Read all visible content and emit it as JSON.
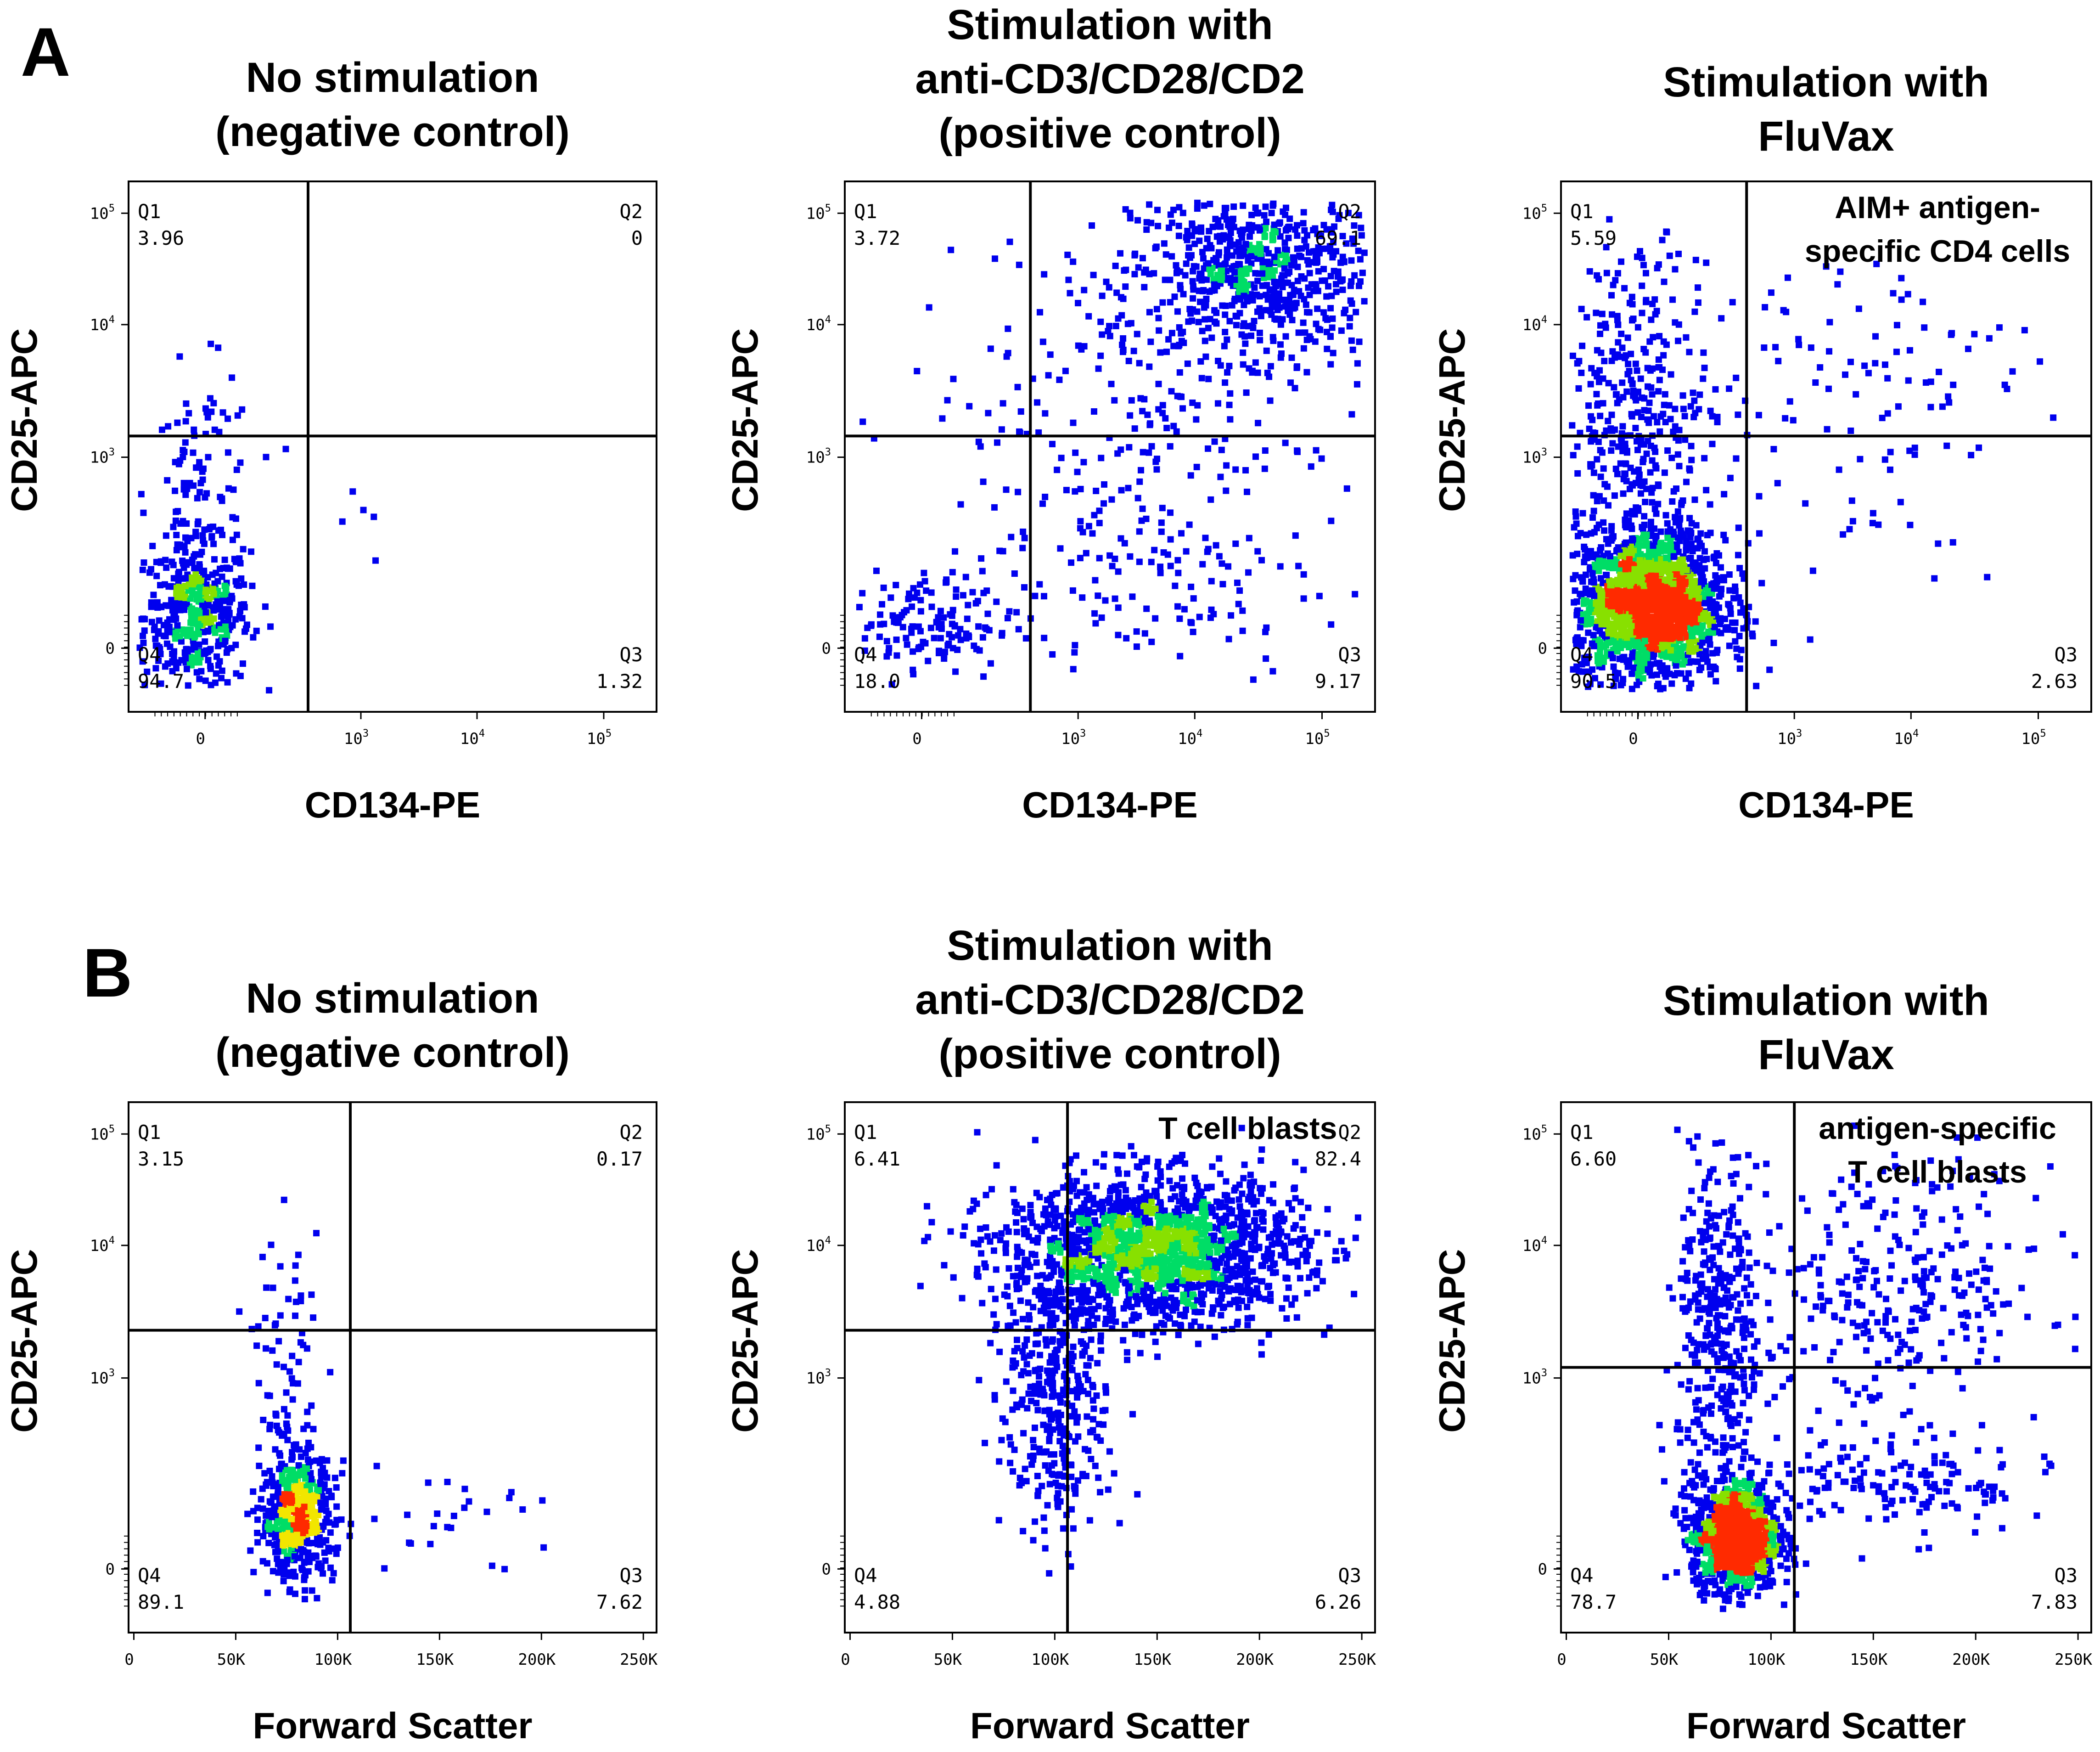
{
  "panel_letters": [
    "A",
    "B"
  ],
  "colors": {
    "low": "#0000ee",
    "mid": "#00dd66",
    "high": "#ff2a00",
    "yellow": "#f2e600",
    "lime": "#88e000",
    "faint": "#c8c8f0",
    "frame": "#000000"
  },
  "chart_data": [
    {
      "type": "scatter",
      "panel": "A",
      "title": [
        "No stimulation",
        "(negative control)"
      ],
      "xlabel": "CD134-PE",
      "ylabel": "CD25-APC",
      "x_scale": "biexponential",
      "y_scale": "biexponential",
      "x_ticks": [
        {
          "b": "0",
          "e": ""
        },
        {
          "b": "10",
          "e": "3"
        },
        {
          "b": "10",
          "e": "4"
        },
        {
          "b": "10",
          "e": "5"
        }
      ],
      "y_ticks": [
        {
          "b": "0",
          "e": ""
        },
        {
          "b": "10",
          "e": "3"
        },
        {
          "b": "10",
          "e": "4"
        },
        {
          "b": "10",
          "e": "5"
        }
      ],
      "gate": {
        "x": 0.34,
        "y": 0.52
      },
      "quadrants": {
        "Q1": "3.96",
        "Q2": "0",
        "Q3": "1.32",
        "Q4": "94.7"
      },
      "annotation": [],
      "populations": [
        {
          "cx": 0.13,
          "cy": 0.18,
          "sx": 0.05,
          "sy": 0.07,
          "n": 420
        },
        {
          "cx": 0.14,
          "cy": 0.4,
          "sx": 0.05,
          "sy": 0.12,
          "n": 120
        },
        {
          "cx": 0.4,
          "cy": 0.33,
          "sx": 0.05,
          "sy": 0.08,
          "n": 5
        }
      ]
    },
    {
      "type": "scatter",
      "panel": "A",
      "title": [
        "Stimulation with",
        "anti-CD3/CD28/CD2",
        "(positive control)"
      ],
      "xlabel": "CD134-PE",
      "ylabel": "CD25-APC",
      "x_scale": "biexponential",
      "y_scale": "biexponential",
      "x_ticks": [
        {
          "b": "0",
          "e": ""
        },
        {
          "b": "10",
          "e": "3"
        },
        {
          "b": "10",
          "e": "4"
        },
        {
          "b": "10",
          "e": "5"
        }
      ],
      "y_ticks": [
        {
          "b": "0",
          "e": ""
        },
        {
          "b": "10",
          "e": "3"
        },
        {
          "b": "10",
          "e": "4"
        },
        {
          "b": "10",
          "e": "5"
        }
      ],
      "gate": {
        "x": 0.35,
        "y": 0.52
      },
      "quadrants": {
        "Q1": "3.72",
        "Q2": "69.1",
        "Q3": "9.17",
        "Q4": "18.0"
      },
      "annotation": [],
      "populations": [
        {
          "cx": 0.78,
          "cy": 0.83,
          "sx": 0.12,
          "sy": 0.08,
          "n": 700
        },
        {
          "cx": 0.55,
          "cy": 0.55,
          "sx": 0.22,
          "sy": 0.18,
          "n": 260
        },
        {
          "cx": 0.14,
          "cy": 0.16,
          "sx": 0.09,
          "sy": 0.05,
          "n": 160
        },
        {
          "cx": 0.6,
          "cy": 0.25,
          "sx": 0.15,
          "sy": 0.1,
          "n": 90
        }
      ]
    },
    {
      "type": "scatter",
      "panel": "A",
      "title": [
        "Stimulation with",
        "FluVax"
      ],
      "xlabel": "CD134-PE",
      "ylabel": "CD25-APC",
      "x_scale": "biexponential",
      "y_scale": "biexponential",
      "x_ticks": [
        {
          "b": "0",
          "e": ""
        },
        {
          "b": "10",
          "e": "3"
        },
        {
          "b": "10",
          "e": "4"
        },
        {
          "b": "10",
          "e": "5"
        }
      ],
      "y_ticks": [
        {
          "b": "0",
          "e": ""
        },
        {
          "b": "10",
          "e": "3"
        },
        {
          "b": "10",
          "e": "4"
        },
        {
          "b": "10",
          "e": "5"
        }
      ],
      "gate": {
        "x": 0.35,
        "y": 0.52
      },
      "quadrants": {
        "Q1": "5.59",
        "Q2": "",
        "Q3": "2.63",
        "Q4": "90.5"
      },
      "annotation": [
        "AIM+ antigen-",
        "specific CD4 cells"
      ],
      "populations": [
        {
          "cx": 0.17,
          "cy": 0.2,
          "sx": 0.07,
          "sy": 0.07,
          "n": 1800
        },
        {
          "cx": 0.15,
          "cy": 0.55,
          "sx": 0.07,
          "sy": 0.16,
          "n": 380
        },
        {
          "cx": 0.55,
          "cy": 0.6,
          "sx": 0.16,
          "sy": 0.16,
          "n": 110
        }
      ]
    },
    {
      "type": "scatter",
      "panel": "B",
      "title": [
        "No stimulation",
        "(negative control)"
      ],
      "xlabel": "Forward Scatter",
      "ylabel": "CD25-APC",
      "x_scale": "linear",
      "y_scale": "biexponential",
      "x_ticks": [
        {
          "b": "0",
          "e": ""
        },
        {
          "b": "50K",
          "e": ""
        },
        {
          "b": "100K",
          "e": ""
        },
        {
          "b": "150K",
          "e": ""
        },
        {
          "b": "200K",
          "e": ""
        },
        {
          "b": "250K",
          "e": ""
        }
      ],
      "y_ticks": [
        {
          "b": "0",
          "e": ""
        },
        {
          "b": "10",
          "e": "3"
        },
        {
          "b": "10",
          "e": "4"
        },
        {
          "b": "10",
          "e": "5"
        }
      ],
      "gate": {
        "x": 0.42,
        "y": 0.57
      },
      "quadrants": {
        "Q1": "3.15",
        "Q2": "0.17",
        "Q3": "7.62",
        "Q4": "89.1"
      },
      "annotation": [],
      "populations": [
        {
          "cx": 0.32,
          "cy": 0.22,
          "sx": 0.035,
          "sy": 0.06,
          "n": 520
        },
        {
          "cx": 0.3,
          "cy": 0.5,
          "sx": 0.03,
          "sy": 0.12,
          "n": 70
        },
        {
          "cx": 0.6,
          "cy": 0.22,
          "sx": 0.12,
          "sy": 0.05,
          "n": 28
        }
      ]
    },
    {
      "type": "scatter",
      "panel": "B",
      "title": [
        "Stimulation with",
        "anti-CD3/CD28/CD2",
        "(positive control)"
      ],
      "xlabel": "Forward Scatter",
      "ylabel": "CD25-APC",
      "x_scale": "linear",
      "y_scale": "biexponential",
      "x_ticks": [
        {
          "b": "0",
          "e": ""
        },
        {
          "b": "50K",
          "e": ""
        },
        {
          "b": "100K",
          "e": ""
        },
        {
          "b": "150K",
          "e": ""
        },
        {
          "b": "200K",
          "e": ""
        },
        {
          "b": "250K",
          "e": ""
        }
      ],
      "y_ticks": [
        {
          "b": "0",
          "e": ""
        },
        {
          "b": "10",
          "e": "3"
        },
        {
          "b": "10",
          "e": "4"
        },
        {
          "b": "10",
          "e": "5"
        }
      ],
      "gate": {
        "x": 0.42,
        "y": 0.57
      },
      "quadrants": {
        "Q1": "6.41",
        "Q2": "82.4",
        "Q3": "6.26",
        "Q4": "4.88"
      },
      "annotation": [
        "T cell blasts"
      ],
      "populations": [
        {
          "cx": 0.58,
          "cy": 0.72,
          "sx": 0.14,
          "sy": 0.07,
          "n": 1700
        },
        {
          "cx": 0.4,
          "cy": 0.45,
          "sx": 0.05,
          "sy": 0.14,
          "n": 380
        }
      ]
    },
    {
      "type": "scatter",
      "panel": "B",
      "title": [
        "Stimulation with",
        "FluVax"
      ],
      "xlabel": "Forward Scatter",
      "ylabel": "CD25-APC",
      "x_scale": "linear",
      "y_scale": "biexponential",
      "x_ticks": [
        {
          "b": "0",
          "e": ""
        },
        {
          "b": "50K",
          "e": ""
        },
        {
          "b": "100K",
          "e": ""
        },
        {
          "b": "150K",
          "e": ""
        },
        {
          "b": "200K",
          "e": ""
        },
        {
          "b": "250K",
          "e": ""
        }
      ],
      "y_ticks": [
        {
          "b": "0",
          "e": ""
        },
        {
          "b": "10",
          "e": "3"
        },
        {
          "b": "10",
          "e": "4"
        },
        {
          "b": "10",
          "e": "5"
        }
      ],
      "gate": {
        "x": 0.44,
        "y": 0.5
      },
      "quadrants": {
        "Q1": "6.60",
        "Q2": "",
        "Q3": "7.83",
        "Q4": "78.7"
      },
      "annotation": [
        "antigen-specific",
        "T cell blasts"
      ],
      "populations": [
        {
          "cx": 0.33,
          "cy": 0.18,
          "sx": 0.04,
          "sy": 0.05,
          "n": 1100
        },
        {
          "cx": 0.3,
          "cy": 0.55,
          "sx": 0.04,
          "sy": 0.18,
          "n": 380
        },
        {
          "cx": 0.63,
          "cy": 0.65,
          "sx": 0.15,
          "sy": 0.12,
          "n": 300
        },
        {
          "cx": 0.63,
          "cy": 0.28,
          "sx": 0.15,
          "sy": 0.05,
          "n": 160
        }
      ]
    }
  ]
}
